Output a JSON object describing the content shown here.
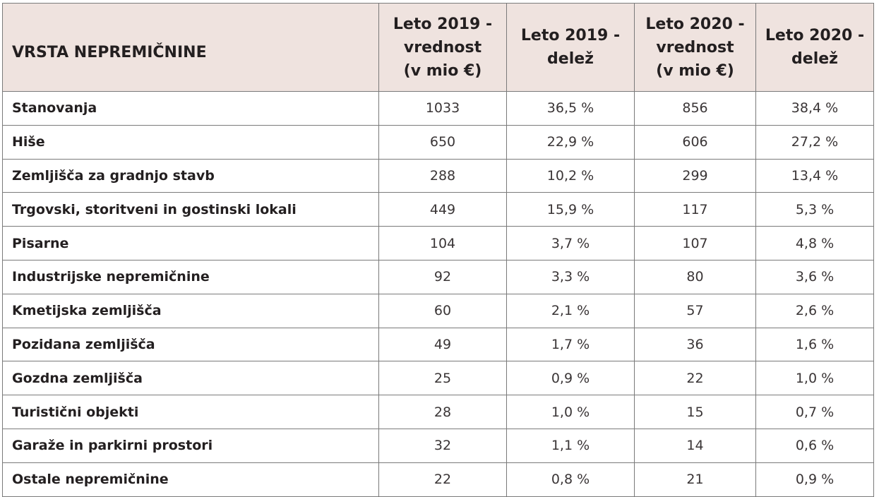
{
  "table": {
    "headers": [
      "VRSTA NEPREMIČNINE",
      "Leto 2019 -\nvrednost\n(v mio €)",
      "Leto 2019 -\ndelež",
      "Leto 2020 -\nvrednost\n(v mio €)",
      "Leto 2020 -\ndelež"
    ],
    "rows": [
      [
        "Stanovanja",
        "1033",
        "36,5 %",
        "856",
        "38,4 %"
      ],
      [
        "Hiše",
        "650",
        "22,9 %",
        "606",
        "27,2 %"
      ],
      [
        "Zemljišča za gradnjo stavb",
        "288",
        "10,2 %",
        "299",
        "13,4 %"
      ],
      [
        "Trgovski, storitveni in gostinski lokali",
        "449",
        "15,9 %",
        "117",
        "5,3 %"
      ],
      [
        "Pisarne",
        "104",
        "3,7 %",
        "107",
        "4,8 %"
      ],
      [
        "Industrijske nepremičnine",
        "92",
        "3,3 %",
        "80",
        "3,6 %"
      ],
      [
        "Kmetijska zemljišča",
        "60",
        "2,1 %",
        "57",
        "2,6 %"
      ],
      [
        "Pozidana zemljišča",
        "49",
        "1,7 %",
        "36",
        "1,6 %"
      ],
      [
        "Gozdna zemljišča",
        "25",
        "0,9 %",
        "22",
        "1,0 %"
      ],
      [
        "Turistični objekti",
        "28",
        "1,0 %",
        "15",
        "0,7 %"
      ],
      [
        "Garaže in parkirni prostori",
        "32",
        "1,1 %",
        "14",
        "0,6 %"
      ],
      [
        "Ostale nepremičnine",
        "22",
        "0,8 %",
        "21",
        "0,9 %"
      ]
    ]
  },
  "colors": {
    "header_background": "#efe3df",
    "border": "#7a7a7a",
    "text": "#231f20"
  }
}
